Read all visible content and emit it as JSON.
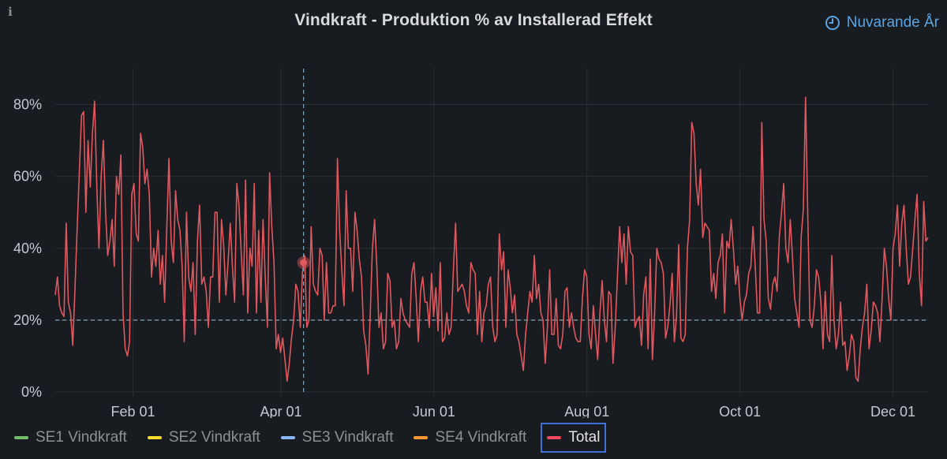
{
  "panel": {
    "title": "Vindkraft - Produktion % av Installerad Effekt",
    "time_range_label": "Nuvarande År",
    "info_icon": "info-icon",
    "clock_icon": "clock-icon"
  },
  "colors": {
    "background": "#181b1f",
    "grid": "#2c2f35",
    "threshold": "#7fa5b8",
    "total": "#e0585f"
  },
  "legend": [
    {
      "label": "SE1 Vindkraft",
      "color": "#73bf69",
      "active": false
    },
    {
      "label": "SE2 Vindkraft",
      "color": "#fade2a",
      "active": false
    },
    {
      "label": "SE3 Vindkraft",
      "color": "#8ab8ff",
      "active": false
    },
    {
      "label": "SE4 Vindkraft",
      "color": "#ff9830",
      "active": false
    },
    {
      "label": "Total",
      "color": "#f2495c",
      "active": true
    }
  ],
  "chart_data": {
    "type": "line",
    "title": "Vindkraft - Produktion % av Installerad Effekt",
    "xlabel": "",
    "ylabel": "",
    "x_unit": "day_of_year",
    "xlim": [
      1,
      349
    ],
    "ylim": [
      0,
      90
    ],
    "y_ticks": [
      0,
      20,
      40,
      60,
      80
    ],
    "y_tick_labels": [
      "0%",
      "20%",
      "40%",
      "60%",
      "80%"
    ],
    "x_ticks": [
      32,
      91,
      152,
      213,
      274,
      335
    ],
    "x_tick_labels": [
      "Feb 01",
      "Apr 01",
      "Jun 01",
      "Aug 01",
      "Oct 01",
      "Dec 01"
    ],
    "threshold": 20,
    "cursor": {
      "x": 100,
      "y": 36
    },
    "series": [
      {
        "name": "Total",
        "color": "#e0585f",
        "values": [
          27,
          32,
          24,
          22,
          21,
          47,
          25,
          22,
          13,
          28,
          45,
          61,
          77,
          78,
          50,
          70,
          57,
          72,
          81,
          57,
          40,
          60,
          70,
          50,
          38,
          42,
          48,
          35,
          60,
          55,
          66,
          22,
          12,
          10,
          14,
          55,
          58,
          44,
          42,
          72,
          68,
          58,
          62,
          55,
          32,
          40,
          35,
          45,
          30,
          38,
          25,
          46,
          65,
          42,
          36,
          56,
          48,
          45,
          35,
          14,
          50,
          32,
          28,
          36,
          16,
          42,
          52,
          30,
          32,
          28,
          18,
          32,
          32,
          50,
          50,
          25,
          48,
          41,
          27,
          36,
          47,
          35,
          25,
          58,
          52,
          39,
          27,
          59,
          22,
          40,
          35,
          58,
          22,
          45,
          25,
          48,
          32,
          18,
          61,
          46,
          36,
          12,
          16,
          11,
          15,
          9,
          3,
          8,
          15,
          20,
          30,
          28,
          18,
          33,
          38,
          18,
          20,
          46,
          30,
          28,
          27,
          40,
          38,
          20,
          36,
          22,
          22,
          24,
          24,
          65,
          45,
          34,
          24,
          56,
          40,
          40,
          28,
          50,
          45,
          37,
          32,
          17,
          13,
          5,
          22,
          40,
          48,
          35,
          18,
          22,
          12,
          14,
          33,
          31,
          18,
          20,
          12,
          14,
          26,
          22,
          20,
          19,
          18,
          33,
          36,
          26,
          14,
          28,
          32,
          25,
          25,
          18,
          33,
          21,
          29,
          17,
          36,
          14,
          15,
          22,
          16,
          18,
          34,
          47,
          28,
          29,
          30,
          28,
          24,
          22,
          36,
          34,
          33,
          16,
          28,
          14,
          22,
          24,
          30,
          32,
          18,
          14,
          16,
          44,
          34,
          39,
          18,
          34,
          29,
          22,
          27,
          16,
          14,
          10,
          6,
          16,
          22,
          28,
          25,
          38,
          26,
          30,
          22,
          20,
          8,
          18,
          34,
          16,
          16,
          26,
          13,
          12,
          16,
          28,
          29,
          18,
          22,
          18,
          15,
          14,
          14,
          26,
          34,
          32,
          16,
          12,
          24,
          16,
          9,
          22,
          31,
          20,
          14,
          28,
          27,
          8,
          18,
          32,
          46,
          36,
          44,
          30,
          46,
          39,
          38,
          18,
          20,
          21,
          13,
          27,
          32,
          12,
          37,
          9,
          22,
          40,
          37,
          36,
          33,
          15,
          18,
          24,
          33,
          14,
          21,
          41,
          15,
          14,
          16,
          40,
          48,
          75,
          72,
          58,
          52,
          62,
          43,
          47,
          46,
          45,
          28,
          33,
          26,
          36,
          38,
          44,
          22,
          42,
          40,
          48,
          40,
          30,
          35,
          26,
          20,
          25,
          27,
          33,
          35,
          46,
          35,
          22,
          22,
          75,
          48,
          42,
          26,
          23,
          30,
          32,
          28,
          43,
          50,
          58,
          40,
          36,
          48,
          38,
          26,
          22,
          18,
          43,
          51,
          82,
          50,
          20,
          18,
          24,
          34,
          32,
          25,
          12,
          28,
          16,
          14,
          38,
          20,
          12,
          16,
          25,
          13,
          14,
          6,
          10,
          16,
          14,
          4,
          3,
          12,
          18,
          22,
          30,
          12,
          17,
          25,
          24,
          22,
          14,
          26,
          40,
          35,
          26,
          20,
          40,
          44,
          52,
          35,
          47,
          52,
          40,
          30,
          32,
          40,
          48,
          55,
          33,
          24,
          53,
          42,
          43
        ]
      }
    ]
  }
}
